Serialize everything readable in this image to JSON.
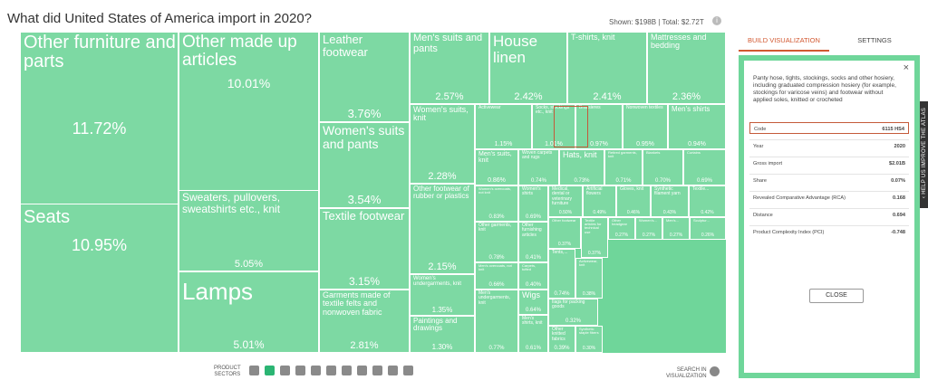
{
  "title": "What did United States of America import in 2020?",
  "totals": {
    "shown_label": "Shown:",
    "shown_value": "$198B",
    "separator": "|",
    "total_label": "Total:",
    "total_value": "$2.72T"
  },
  "colors": {
    "cell_fill": "#7dd9a3",
    "background_green": "#6fd69a",
    "accent": "#d2572f",
    "selected_outline": "#c45a3a"
  },
  "chart_data": {
    "type": "treemap",
    "cells": [
      {
        "label": "Other furniture and parts",
        "value": "11.72%"
      },
      {
        "label": "Seats",
        "value": "10.95%"
      },
      {
        "label": "Other made up articles",
        "value": "10.01%"
      },
      {
        "label": "Sweaters, pullovers, sweatshirts etc., knit",
        "value": "5.05%"
      },
      {
        "label": "Lamps",
        "value": "5.01%"
      },
      {
        "label": "Leather footwear",
        "value": "3.76%"
      },
      {
        "label": "Women's suits and pants",
        "value": "3.54%"
      },
      {
        "label": "Textile footwear",
        "value": "3.15%"
      },
      {
        "label": "Garments made of textile felts and nonwoven fabric",
        "value": "2.81%"
      },
      {
        "label": "Men's suits and pants",
        "value": "2.57%"
      },
      {
        "label": "House linen",
        "value": "2.42%"
      },
      {
        "label": "T-shirts, knit",
        "value": "2.41%"
      },
      {
        "label": "Mattresses and bedding",
        "value": "2.36%"
      },
      {
        "label": "Women's suits, knit",
        "value": "2.28%"
      },
      {
        "label": "Other footwear of rubber or plastics",
        "value": "2.15%"
      },
      {
        "label": "Women's undergarments, knit",
        "value": "1.35%"
      },
      {
        "label": "Paintings and drawings",
        "value": "1.30%"
      },
      {
        "label": "Activewear",
        "value": "1.15%"
      },
      {
        "label": "Socks, stockings etc., knit",
        "value": "1.01%"
      },
      {
        "label": "Brassieres",
        "value": "0.97%"
      },
      {
        "label": "Nonwoven textiles",
        "value": "0.95%"
      },
      {
        "label": "Men's shirts",
        "value": "0.94%"
      },
      {
        "label": "Men's suits, knit",
        "value": "0.86%"
      },
      {
        "label": "Woven carpets and rugs",
        "value": "0.74%"
      },
      {
        "label": "Hats, knit",
        "value": "0.73%"
      },
      {
        "label": "Retired garments, knit",
        "value": "0.71%"
      },
      {
        "label": "Blankets",
        "value": "0.70%"
      },
      {
        "label": "Curtains",
        "value": "0.69%"
      },
      {
        "label": "Women's overcoats, not knit",
        "value": "0.83%"
      },
      {
        "label": "Women's shirts",
        "value": "0.69%"
      },
      {
        "label": "Medical, dental or veterinary furniture",
        "value": "0.50%"
      },
      {
        "label": "Artificial flowers",
        "value": "0.49%"
      },
      {
        "label": "Gloves, knit",
        "value": "0.46%"
      },
      {
        "label": "Synthetic filament yarn",
        "value": "0.43%"
      },
      {
        "label": "Textile...",
        "value": "0.42%"
      },
      {
        "label": "Other garments, knit",
        "value": "0.78%"
      },
      {
        "label": "Other furnishing articles",
        "value": "0.41%"
      },
      {
        "label": "Other footwear",
        "value": "0.37%"
      },
      {
        "label": "Textile articles for technical use",
        "value": "0.37%"
      },
      {
        "label": "Other headgear",
        "value": "0.27%"
      },
      {
        "label": "Women's...",
        "value": "0.27%"
      },
      {
        "label": "Men's...",
        "value": "0.27%"
      },
      {
        "label": "Sculptur...",
        "value": "0.26%"
      },
      {
        "label": "Men's overcoats, not knit",
        "value": "0.66%"
      },
      {
        "label": "Carpets, tufted",
        "value": "0.40%"
      },
      {
        "label": "Wigs",
        "value": "0.64%"
      },
      {
        "label": "Men's undergarments, knit",
        "value": "0.77%"
      },
      {
        "label": "Men's shirts, knit",
        "value": "0.61%"
      },
      {
        "label": "Ilags for packing goods",
        "value": "0.32%"
      },
      {
        "label": "Other knitted fabrics",
        "value": "0.39%"
      },
      {
        "label": "Synthetic staple fibers",
        "value": "0.30%"
      },
      {
        "label": "Tents,...",
        "value": "0.74%"
      },
      {
        "label": "Activewear, knit",
        "value": "0.38%"
      }
    ]
  },
  "bottom": {
    "product_label": "PRODUCT",
    "sectors_label": "SECTORS",
    "search_label": "SEARCH IN",
    "search_sub": "VISUALIZATION"
  },
  "panel": {
    "tabs": [
      "BUILD VISUALIZATION",
      "SETTINGS"
    ],
    "close_x": "×",
    "product_name": "Panty hose, tights, stockings, socks and other hosiery, including graduated compression hosiery (for example, stockings for varicose veins) and footwear without applied soles, knitted or crocheted",
    "rows": [
      {
        "label": "Code",
        "value": "6115 HS4"
      },
      {
        "label": "Year",
        "value": "2020"
      },
      {
        "label": "Gross import",
        "value": "$2.01B"
      },
      {
        "label": "Share",
        "value": "0.07%"
      },
      {
        "label": "Revealed Comparative Advantage (RCA)",
        "value": "0.168"
      },
      {
        "label": "Distance",
        "value": "0.694"
      },
      {
        "label": "Product Complexity Index (PCI)",
        "value": "-0.748"
      }
    ],
    "close_button": "CLOSE"
  },
  "help": {
    "label": "HELP US IMPROVE THE ATLAS",
    "chevron": "‹"
  }
}
